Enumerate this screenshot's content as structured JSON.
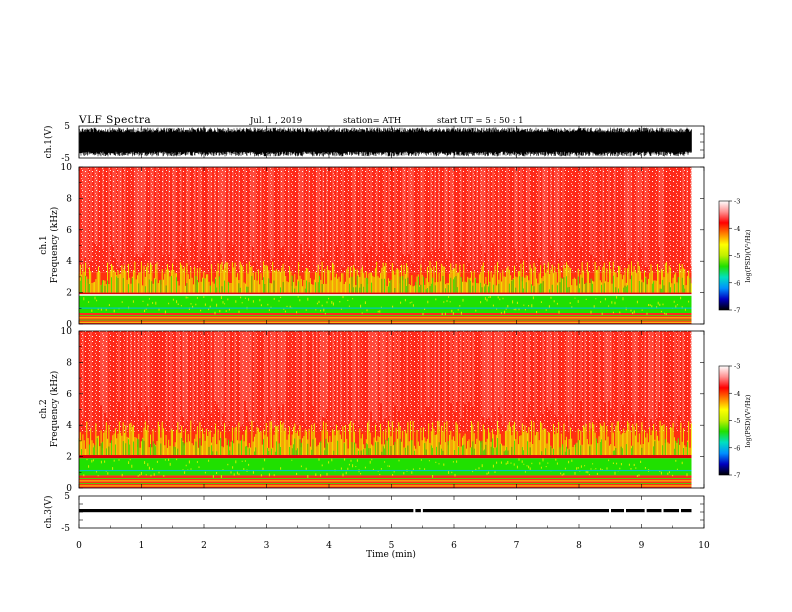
{
  "header": {
    "title": "VLF  Spectra",
    "date": "Jul.  1  , 2019",
    "station": "station= ATH",
    "start": "start  UT  =    5  : 50 : 1"
  },
  "chart_data": [
    {
      "type": "line",
      "name": "waveform-ch1",
      "ylabel": "ch.1(V)",
      "ylim": [
        -5,
        5
      ],
      "yticks": [
        "5",
        "-5"
      ],
      "xlim": [
        0,
        10
      ],
      "x_extent": [
        0,
        9.8
      ],
      "envelope": [
        -4.5,
        4.5
      ],
      "color": "#000000"
    },
    {
      "type": "heatmap",
      "name": "spectrogram-ch1",
      "ylabel_top": "ch.1",
      "ylabel": "Frequency  (kHz)",
      "ylim": [
        0,
        10
      ],
      "yticks": [
        "0",
        "2",
        "4",
        "6",
        "8",
        "10"
      ],
      "xlim": [
        0,
        10
      ],
      "x_extent": [
        0,
        9.8
      ],
      "band_structure_kHz": {
        "line_band": [
          0,
          0.7
        ],
        "green_band": [
          0.7,
          1.8
        ],
        "red_line": [
          1.9,
          2.0
        ],
        "yellow_band": [
          2.0,
          3.3
        ],
        "red_body": [
          3.3,
          10
        ]
      },
      "colorbar": {
        "ylabel": "log(PSD)(V²/Hz)",
        "range": [
          -7,
          -3
        ],
        "ticks": [
          "-3",
          "-4",
          "-5",
          "-6",
          "-7"
        ]
      }
    },
    {
      "type": "heatmap",
      "name": "spectrogram-ch2",
      "ylabel_top": "ch.2",
      "ylabel": "Frequency  (kHz)",
      "ylim": [
        0,
        10
      ],
      "yticks": [
        "0",
        "2",
        "4",
        "6",
        "8",
        "10"
      ],
      "xlim": [
        0,
        10
      ],
      "x_extent": [
        0,
        9.8
      ],
      "band_structure_kHz": {
        "line_band": [
          0,
          0.8
        ],
        "green_band": [
          0.8,
          1.9
        ],
        "red_line": [
          1.9,
          2.1
        ],
        "yellow_band": [
          2.1,
          3.6
        ],
        "red_body": [
          3.6,
          10
        ]
      },
      "colorbar": {
        "ylabel": "log(PSD)(V²/Hz)",
        "range": [
          -7,
          -3
        ],
        "ticks": [
          "-3",
          "-4",
          "-5",
          "-6",
          "-7"
        ]
      }
    },
    {
      "type": "line",
      "name": "waveform-ch3",
      "ylabel": "ch.3(V)",
      "ylim": [
        -5,
        5
      ],
      "yticks": [
        "5",
        "-5"
      ],
      "xlim": [
        0,
        10
      ],
      "x_extent": [
        0,
        9.8
      ],
      "level": 0,
      "color": "#000000"
    }
  ],
  "xaxis": {
    "label": "Time  (min)",
    "ticks": [
      "0",
      "1",
      "2",
      "3",
      "4",
      "5",
      "6",
      "7",
      "8",
      "9",
      "10"
    ]
  },
  "colorbar_colors": [
    "#000000",
    "#0000c0",
    "#0090ff",
    "#00e0c0",
    "#20e000",
    "#c0f000",
    "#ffff00",
    "#ff8000",
    "#ff0000",
    "#ff9090",
    "#ffffff"
  ]
}
